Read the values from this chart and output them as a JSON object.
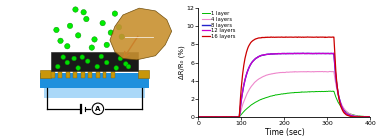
{
  "graph": {
    "xlim": [
      0,
      400
    ],
    "ylim": [
      0,
      12
    ],
    "xlabel": "Time (sec)",
    "ylabel": "ΔR/R₀ (%)",
    "xticks": [
      0,
      100,
      200,
      300,
      400
    ],
    "yticks": [
      0,
      2,
      4,
      6,
      8,
      10,
      12
    ],
    "exposure_start": 95,
    "exposure_end": 315,
    "series": [
      {
        "label": "1 layer",
        "color": "#00bb00",
        "peak": 2.85,
        "tau_rise": 45,
        "tau_fall": 18
      },
      {
        "label": "4 layers",
        "color": "#ee88cc",
        "peak": 5.0,
        "tau_rise": 25,
        "tau_fall": 14
      },
      {
        "label": "8 layers",
        "color": "#2222cc",
        "peak": 7.0,
        "tau_rise": 15,
        "tau_fall": 10
      },
      {
        "label": "12 layers",
        "color": "#cc00cc",
        "peak": 7.0,
        "tau_rise": 15,
        "tau_fall": 10
      },
      {
        "label": "16 layers",
        "color": "#cc0000",
        "peak": 8.8,
        "tau_rise": 10,
        "tau_fall": 8
      }
    ]
  },
  "schematic": {
    "platform_top_color": "#1e90dd",
    "platform_bottom_color": "#88ccee",
    "graphene_color": "#1a1a1a",
    "electrode_color": "#c8960a",
    "molecules_color": "#00dd00",
    "inset_bg": "#8B6914",
    "inset_flake": "#c89030",
    "arrow_color": "#dd0000"
  }
}
